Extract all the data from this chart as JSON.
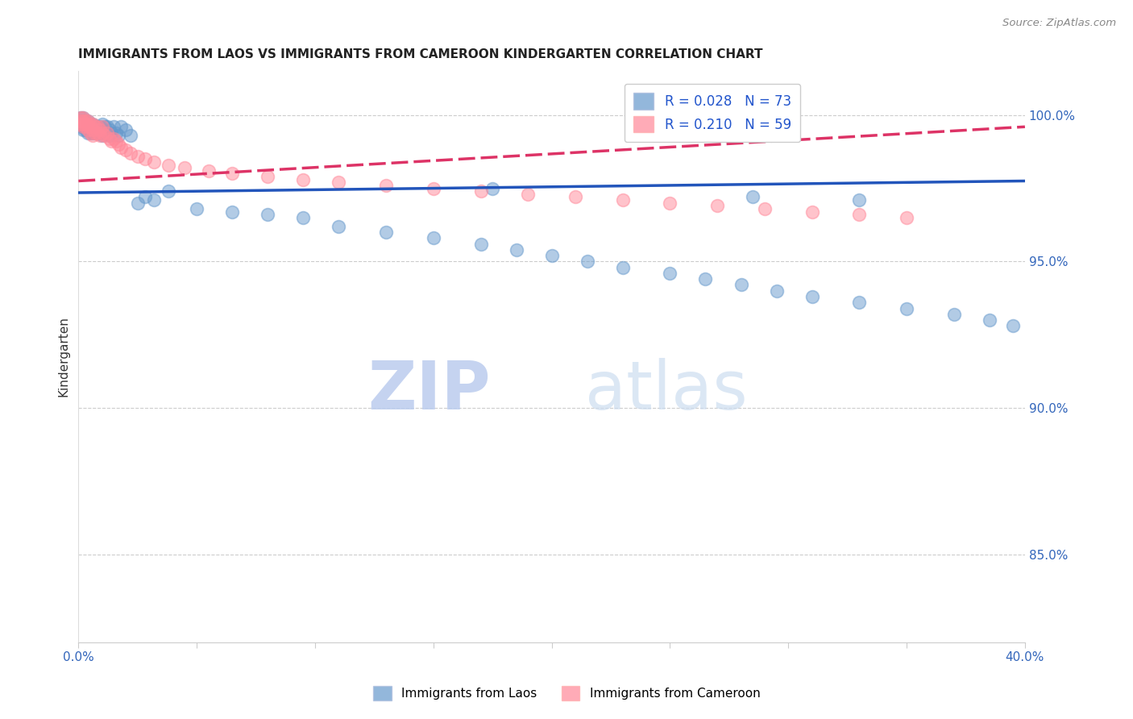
{
  "title": "IMMIGRANTS FROM LAOS VS IMMIGRANTS FROM CAMEROON KINDERGARTEN CORRELATION CHART",
  "source": "Source: ZipAtlas.com",
  "ylabel": "Kindergarten",
  "legend_label1": "Immigrants from Laos",
  "legend_label2": "Immigrants from Cameroon",
  "R1": 0.028,
  "N1": 73,
  "R2": 0.21,
  "N2": 59,
  "color1": "#6699CC",
  "color2": "#FF8899",
  "trendline1_color": "#2255BB",
  "trendline2_color": "#DD3366",
  "xmin": 0.0,
  "xmax": 0.4,
  "ymin": 0.82,
  "ymax": 1.015,
  "ytick_right": [
    1.0,
    0.95,
    0.9,
    0.85
  ],
  "ytick_right_labels": [
    "100.0%",
    "95.0%",
    "90.0%",
    "85.0%"
  ],
  "watermark_zip": "ZIP",
  "watermark_atlas": "atlas",
  "scatter1_x": [
    0.001,
    0.001,
    0.001,
    0.001,
    0.002,
    0.002,
    0.002,
    0.002,
    0.002,
    0.003,
    0.003,
    0.003,
    0.003,
    0.004,
    0.004,
    0.004,
    0.004,
    0.005,
    0.005,
    0.005,
    0.006,
    0.006,
    0.006,
    0.007,
    0.007,
    0.008,
    0.008,
    0.009,
    0.009,
    0.01,
    0.01,
    0.01,
    0.011,
    0.012,
    0.012,
    0.013,
    0.013,
    0.014,
    0.015,
    0.016,
    0.017,
    0.018,
    0.02,
    0.022,
    0.025,
    0.028,
    0.032,
    0.038,
    0.05,
    0.065,
    0.08,
    0.095,
    0.11,
    0.13,
    0.15,
    0.17,
    0.185,
    0.2,
    0.215,
    0.23,
    0.25,
    0.265,
    0.28,
    0.295,
    0.31,
    0.33,
    0.35,
    0.37,
    0.385,
    0.395,
    0.175,
    0.285,
    0.33
  ],
  "scatter1_y": [
    0.999,
    0.998,
    0.997,
    0.996,
    0.999,
    0.998,
    0.997,
    0.996,
    0.995,
    0.998,
    0.997,
    0.996,
    0.995,
    0.998,
    0.997,
    0.996,
    0.994,
    0.997,
    0.996,
    0.994,
    0.997,
    0.996,
    0.994,
    0.996,
    0.994,
    0.996,
    0.994,
    0.996,
    0.994,
    0.997,
    0.995,
    0.993,
    0.996,
    0.996,
    0.994,
    0.995,
    0.993,
    0.994,
    0.996,
    0.994,
    0.993,
    0.996,
    0.995,
    0.993,
    0.97,
    0.972,
    0.971,
    0.974,
    0.968,
    0.967,
    0.966,
    0.965,
    0.962,
    0.96,
    0.958,
    0.956,
    0.954,
    0.952,
    0.95,
    0.948,
    0.946,
    0.944,
    0.942,
    0.94,
    0.938,
    0.936,
    0.934,
    0.932,
    0.93,
    0.928,
    0.975,
    0.972,
    0.971
  ],
  "scatter2_x": [
    0.001,
    0.001,
    0.001,
    0.002,
    0.002,
    0.002,
    0.002,
    0.003,
    0.003,
    0.003,
    0.004,
    0.004,
    0.004,
    0.005,
    0.005,
    0.005,
    0.006,
    0.006,
    0.006,
    0.007,
    0.007,
    0.008,
    0.008,
    0.009,
    0.009,
    0.01,
    0.01,
    0.011,
    0.012,
    0.013,
    0.014,
    0.015,
    0.016,
    0.017,
    0.018,
    0.02,
    0.022,
    0.025,
    0.028,
    0.032,
    0.038,
    0.045,
    0.055,
    0.065,
    0.08,
    0.095,
    0.11,
    0.13,
    0.15,
    0.17,
    0.19,
    0.21,
    0.23,
    0.25,
    0.27,
    0.29,
    0.31,
    0.33,
    0.35
  ],
  "scatter2_y": [
    0.999,
    0.998,
    0.997,
    0.999,
    0.998,
    0.997,
    0.996,
    0.998,
    0.997,
    0.996,
    0.998,
    0.997,
    0.995,
    0.997,
    0.996,
    0.994,
    0.997,
    0.995,
    0.993,
    0.996,
    0.994,
    0.996,
    0.994,
    0.995,
    0.993,
    0.996,
    0.994,
    0.993,
    0.994,
    0.992,
    0.991,
    0.992,
    0.991,
    0.99,
    0.989,
    0.988,
    0.987,
    0.986,
    0.985,
    0.984,
    0.983,
    0.982,
    0.981,
    0.98,
    0.979,
    0.978,
    0.977,
    0.976,
    0.975,
    0.974,
    0.973,
    0.972,
    0.971,
    0.97,
    0.969,
    0.968,
    0.967,
    0.966,
    0.965
  ],
  "trendline1_x0": 0.0,
  "trendline1_x1": 0.4,
  "trendline1_y0": 0.9735,
  "trendline1_y1": 0.9775,
  "trendline2_x0": 0.0,
  "trendline2_x1": 0.4,
  "trendline2_y0": 0.9775,
  "trendline2_y1": 0.996
}
